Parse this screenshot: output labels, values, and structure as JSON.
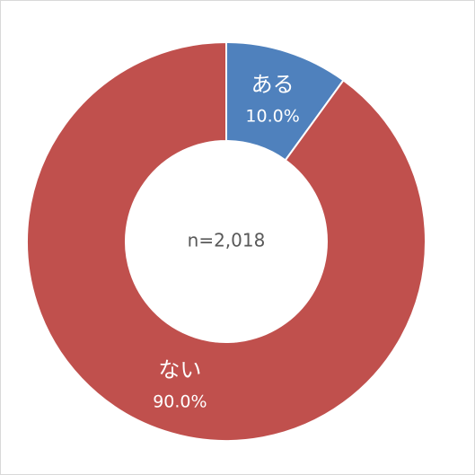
{
  "chart_data": {
    "type": "donut",
    "categories": [
      "ある",
      "ない"
    ],
    "values": [
      10.0,
      90.0
    ],
    "value_labels": [
      "10.0%",
      "90.0%"
    ],
    "colors": [
      "#4f81bd",
      "#c0504d"
    ],
    "center_text": "n=2,018"
  }
}
